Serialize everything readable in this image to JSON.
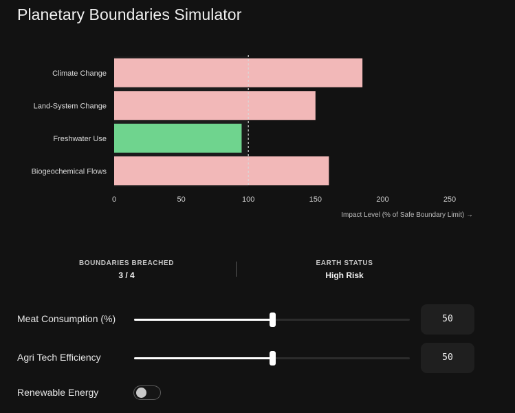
{
  "app": {
    "title": "Planetary Boundaries Simulator"
  },
  "chart_data": {
    "type": "bar",
    "orientation": "horizontal",
    "categories": [
      "Climate Change",
      "Land-System Change",
      "Freshwater Use",
      "Biogeochemical Flows"
    ],
    "values": [
      185,
      150,
      95,
      160
    ],
    "bar_colors": [
      "#f2b8b8",
      "#f2b8b8",
      "#6fd48e",
      "#f2b8b8"
    ],
    "xlim": [
      0,
      250
    ],
    "xticks": [
      "0",
      "50",
      "100",
      "150",
      "200",
      "250"
    ],
    "xlabel": "Impact Level (% of Safe Boundary Limit) →",
    "reference_line": 100,
    "grid": false,
    "colors": {
      "breached": "#f2b8b8",
      "safe": "#6fd48e",
      "reference_line": "#d8d8d8"
    }
  },
  "stats": {
    "breached_label": "BOUNDARIES BREACHED",
    "breached_value": "3 / 4",
    "status_label": "EARTH STATUS",
    "status_value": "High Risk"
  },
  "controls": {
    "meat": {
      "label": "Meat Consumption (%)",
      "value": 50,
      "value_text": "50",
      "min": 0,
      "max": 100
    },
    "agri": {
      "label": "Agri Tech Efficiency",
      "value": 50,
      "value_text": "50",
      "min": 0,
      "max": 100
    },
    "renewable": {
      "label": "Renewable Energy",
      "enabled": false
    }
  }
}
